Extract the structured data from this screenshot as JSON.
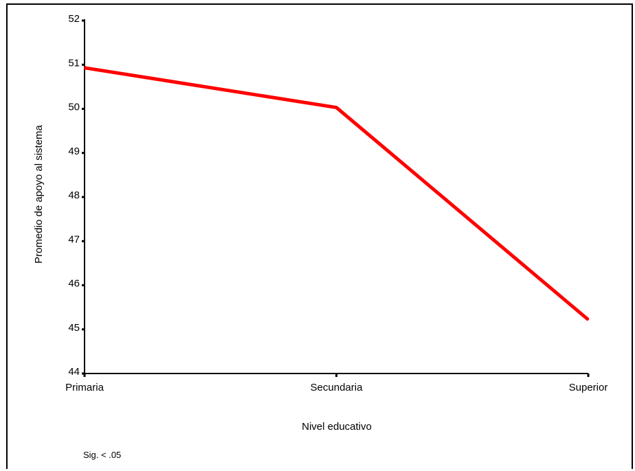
{
  "chart_data": {
    "type": "line",
    "categories": [
      "Primaria",
      "Secundaria",
      "Superior"
    ],
    "series": [
      {
        "values": [
          50.93,
          50.03,
          45.22
        ],
        "color": "#ff0000"
      }
    ],
    "xlabel": "Nivel educativo",
    "ylabel": "Promedio de apoyo al sistema",
    "ylim": [
      44,
      52
    ],
    "yticks": [
      44,
      45,
      46,
      47,
      48,
      49,
      50,
      51,
      52
    ],
    "grid": false,
    "legend": "none",
    "note": "Sig. < .05"
  }
}
